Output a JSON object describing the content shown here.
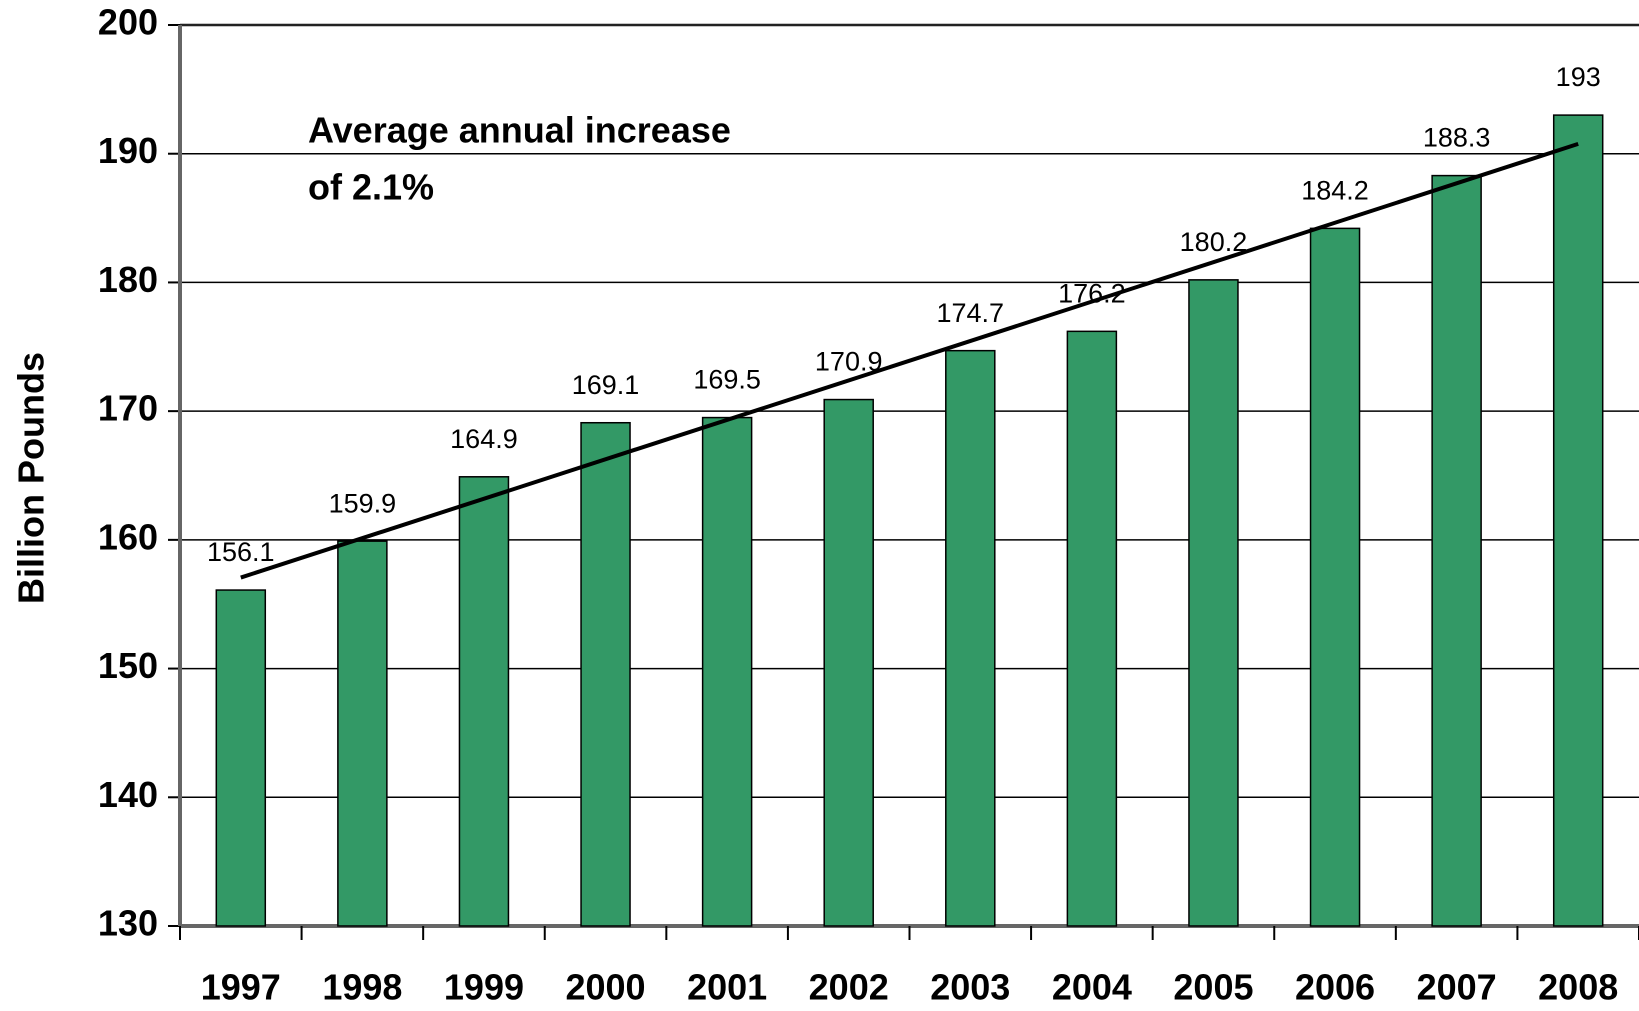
{
  "chart_data": {
    "type": "bar",
    "y_label": "Billion Pounds",
    "annotation": [
      "Average annual increase",
      "of 2.1%"
    ],
    "categories": [
      "1997",
      "1998",
      "1999",
      "2000",
      "2001",
      "2002",
      "2003",
      "2004",
      "2005",
      "2006",
      "2007",
      "2008"
    ],
    "values": [
      156.1,
      159.9,
      164.9,
      169.1,
      169.5,
      170.9,
      174.7,
      176.2,
      180.2,
      184.2,
      188.3,
      193
    ],
    "color": "#339966",
    "ylim": [
      130,
      200
    ],
    "yticks": [
      130,
      140,
      150,
      160,
      170,
      180,
      190,
      200
    ],
    "grid": true,
    "trendline": true
  }
}
